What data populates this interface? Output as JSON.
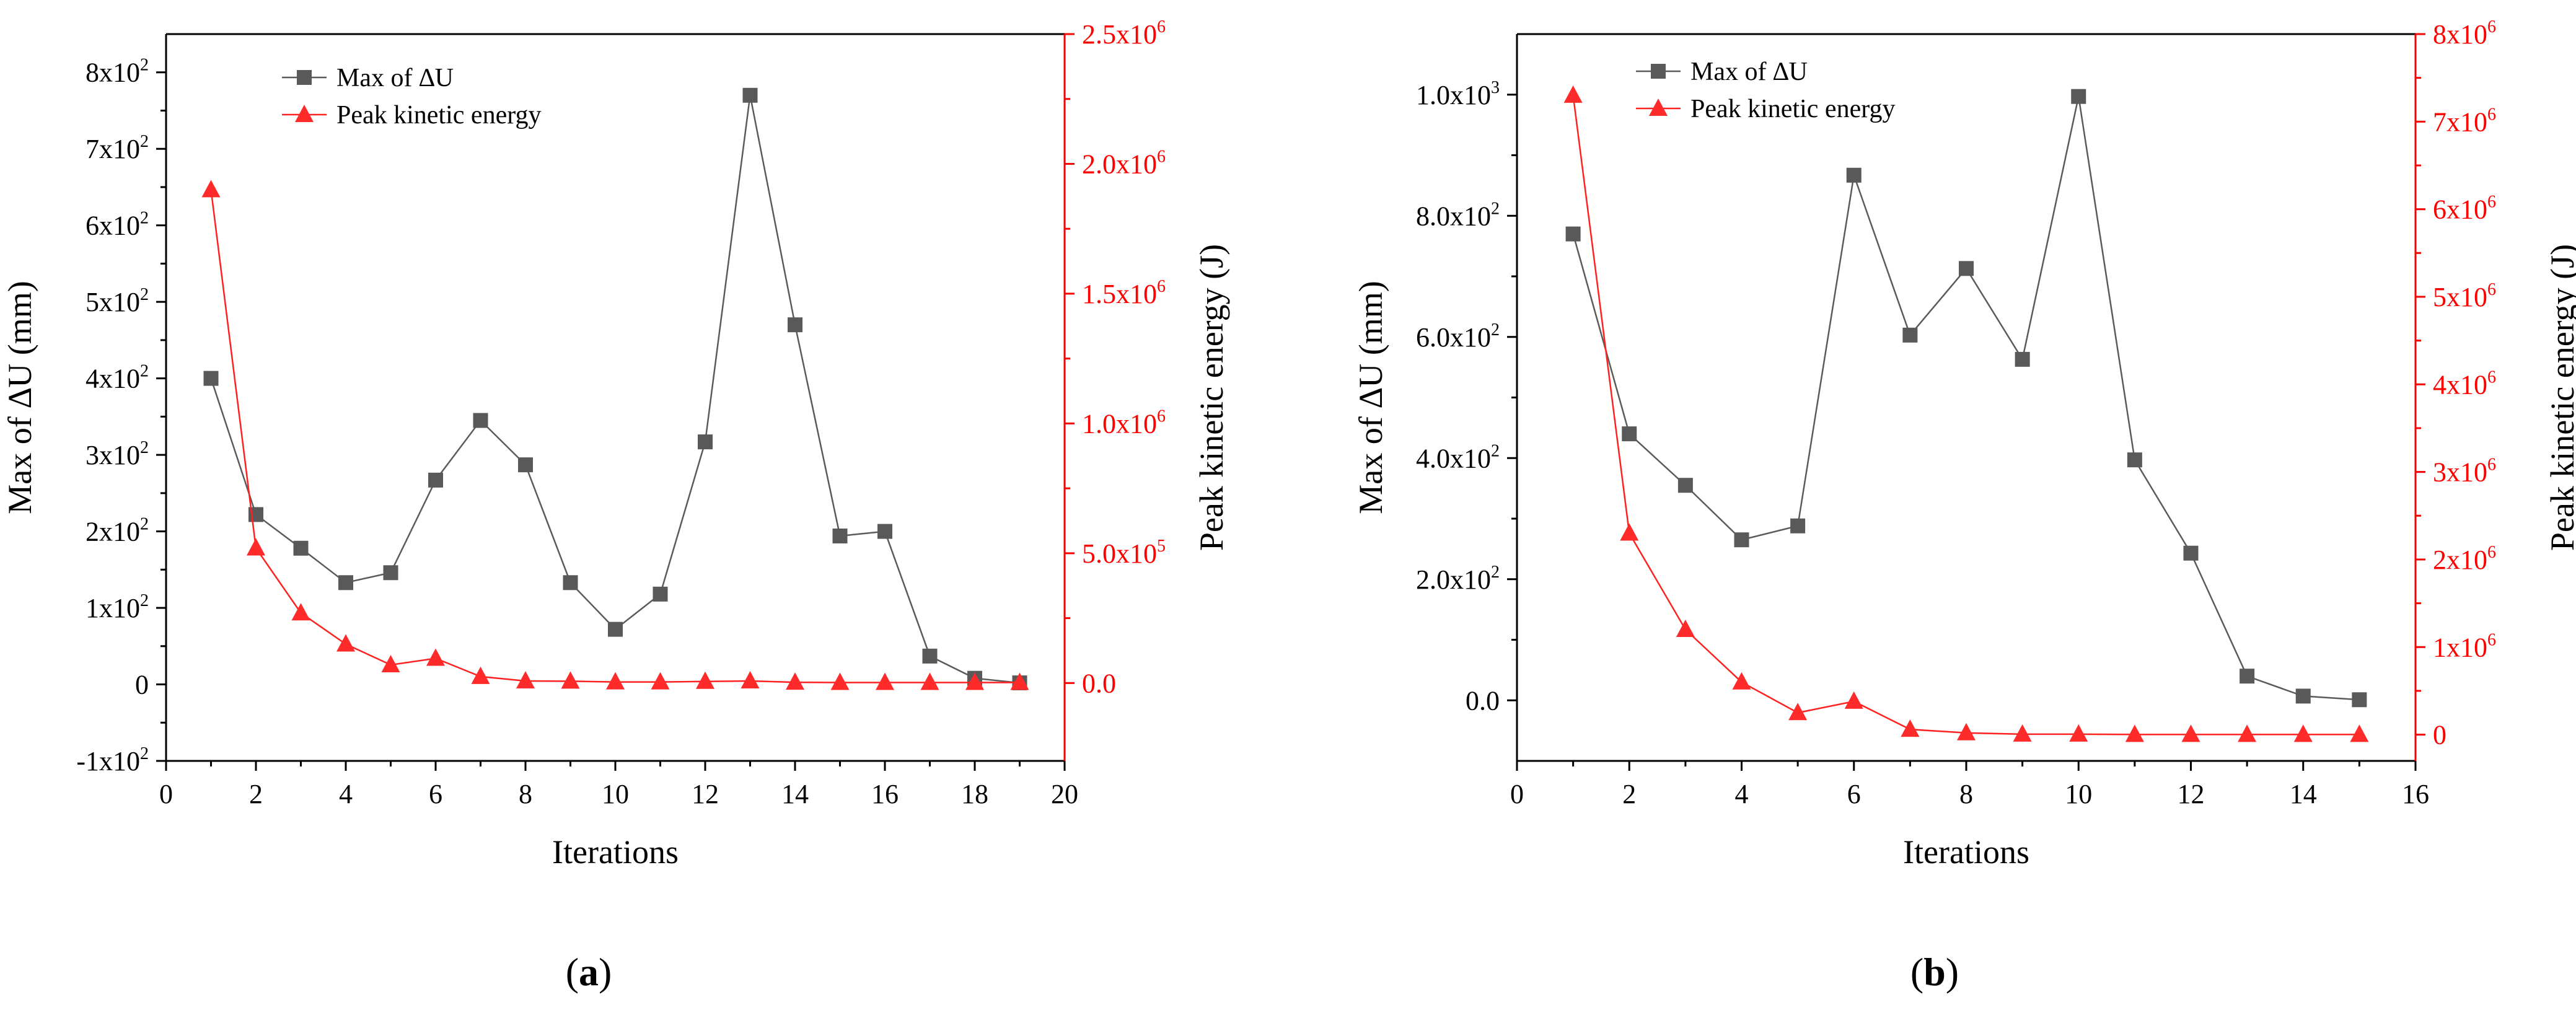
{
  "chart_data": [
    {
      "type": "line",
      "panel_label": "a",
      "xlabel": "Iterations",
      "ylabel": "Max of ∆U (mm)",
      "y2label": "Peak kinetic energy (J)",
      "xlim": [
        0,
        20
      ],
      "ylim": [
        -100,
        850
      ],
      "y2lim": [
        -300000,
        2500000
      ],
      "x_ticks": [
        0,
        2,
        4,
        6,
        8,
        10,
        12,
        14,
        16,
        18,
        20
      ],
      "x_tick_labels": [
        "0",
        "2",
        "4",
        "6",
        "8",
        "10",
        "12",
        "14",
        "16",
        "18",
        "20"
      ],
      "y_ticks": [
        -100,
        0,
        100,
        200,
        300,
        400,
        500,
        600,
        700,
        800
      ],
      "y_tick_labels": [
        {
          "base": "-1x10",
          "exp": "2"
        },
        {
          "base": "0",
          "exp": ""
        },
        {
          "base": "1x10",
          "exp": "2"
        },
        {
          "base": "2x10",
          "exp": "2"
        },
        {
          "base": "3x10",
          "exp": "2"
        },
        {
          "base": "4x10",
          "exp": "2"
        },
        {
          "base": "5x10",
          "exp": "2"
        },
        {
          "base": "6x10",
          "exp": "2"
        },
        {
          "base": "7x10",
          "exp": "2"
        },
        {
          "base": "8x10",
          "exp": "2"
        }
      ],
      "y2_ticks": [
        0,
        500000,
        1000000,
        1500000,
        2000000,
        2500000
      ],
      "y2_tick_labels": [
        {
          "base": "0.0",
          "exp": ""
        },
        {
          "base": "5.0x10",
          "exp": "5"
        },
        {
          "base": "1.0x10",
          "exp": "6"
        },
        {
          "base": "1.5x10",
          "exp": "6"
        },
        {
          "base": "2.0x10",
          "exp": "6"
        },
        {
          "base": "2.5x10",
          "exp": "6"
        }
      ],
      "legend_position": "top-left",
      "series": [
        {
          "name": "Max of ∆U",
          "axis": "left",
          "color": "#595959",
          "marker": "square",
          "x": [
            1,
            2,
            3,
            4,
            5,
            6,
            7,
            8,
            9,
            10,
            11,
            12,
            13,
            14,
            15,
            16,
            17,
            18,
            19
          ],
          "values": [
            400,
            222,
            178,
            133,
            146,
            267,
            345,
            287,
            133,
            72,
            118,
            317,
            770,
            470,
            194,
            200,
            37,
            8,
            2
          ]
        },
        {
          "name": "Peak kinetic energy",
          "axis": "right",
          "color": "#ff2a2a",
          "marker": "triangle",
          "x": [
            1,
            2,
            3,
            4,
            5,
            6,
            7,
            8,
            9,
            10,
            11,
            12,
            13,
            14,
            15,
            16,
            17,
            18,
            19
          ],
          "values": [
            1900000,
            520000,
            270000,
            150000,
            70000,
            95000,
            25000,
            8000,
            7000,
            4000,
            4000,
            6000,
            8000,
            3000,
            2000,
            2000,
            2000,
            2000,
            2000
          ]
        }
      ]
    },
    {
      "type": "line",
      "panel_label": "b",
      "xlabel": "Iterations",
      "ylabel": "Max of ∆U (mm)",
      "y2label": "Peak kinetic energy (J)",
      "xlim": [
        0,
        16
      ],
      "ylim": [
        -100,
        1100
      ],
      "y2lim": [
        -300000,
        8000000
      ],
      "x_ticks": [
        0,
        2,
        4,
        6,
        8,
        10,
        12,
        14,
        16
      ],
      "x_tick_labels": [
        "0",
        "2",
        "4",
        "6",
        "8",
        "10",
        "12",
        "14",
        "16"
      ],
      "y_ticks": [
        0,
        200,
        400,
        600,
        800,
        1000
      ],
      "y_tick_labels": [
        {
          "base": "0.0",
          "exp": ""
        },
        {
          "base": "2.0x10",
          "exp": "2"
        },
        {
          "base": "4.0x10",
          "exp": "2"
        },
        {
          "base": "6.0x10",
          "exp": "2"
        },
        {
          "base": "8.0x10",
          "exp": "2"
        },
        {
          "base": "1.0x10",
          "exp": "3"
        }
      ],
      "y2_ticks": [
        0,
        1000000,
        2000000,
        3000000,
        4000000,
        5000000,
        6000000,
        7000000,
        8000000
      ],
      "y2_tick_labels": [
        {
          "base": "0",
          "exp": ""
        },
        {
          "base": "1x10",
          "exp": "6"
        },
        {
          "base": "2x10",
          "exp": "6"
        },
        {
          "base": "3x10",
          "exp": "6"
        },
        {
          "base": "4x10",
          "exp": "6"
        },
        {
          "base": "5x10",
          "exp": "6"
        },
        {
          "base": "6x10",
          "exp": "6"
        },
        {
          "base": "7x10",
          "exp": "6"
        },
        {
          "base": "8x10",
          "exp": "6"
        }
      ],
      "legend_position": "top-left",
      "series": [
        {
          "name": "Max of ∆U",
          "axis": "left",
          "color": "#595959",
          "marker": "square",
          "x": [
            1,
            2,
            3,
            4,
            5,
            6,
            7,
            8,
            9,
            10,
            11,
            12,
            13,
            14,
            15
          ],
          "values": [
            770,
            440,
            355,
            265,
            288,
            867,
            603,
            713,
            563,
            997,
            397,
            243,
            40,
            7,
            1
          ]
        },
        {
          "name": "Peak kinetic energy",
          "axis": "right",
          "color": "#ff2a2a",
          "marker": "triangle",
          "x": [
            1,
            2,
            3,
            4,
            5,
            6,
            7,
            8,
            9,
            10,
            11,
            12,
            13,
            14,
            15
          ],
          "values": [
            7300000,
            2300000,
            1200000,
            600000,
            250000,
            380000,
            60000,
            20000,
            5000,
            5000,
            2000,
            2000,
            2000,
            2000,
            2000
          ]
        }
      ]
    }
  ]
}
